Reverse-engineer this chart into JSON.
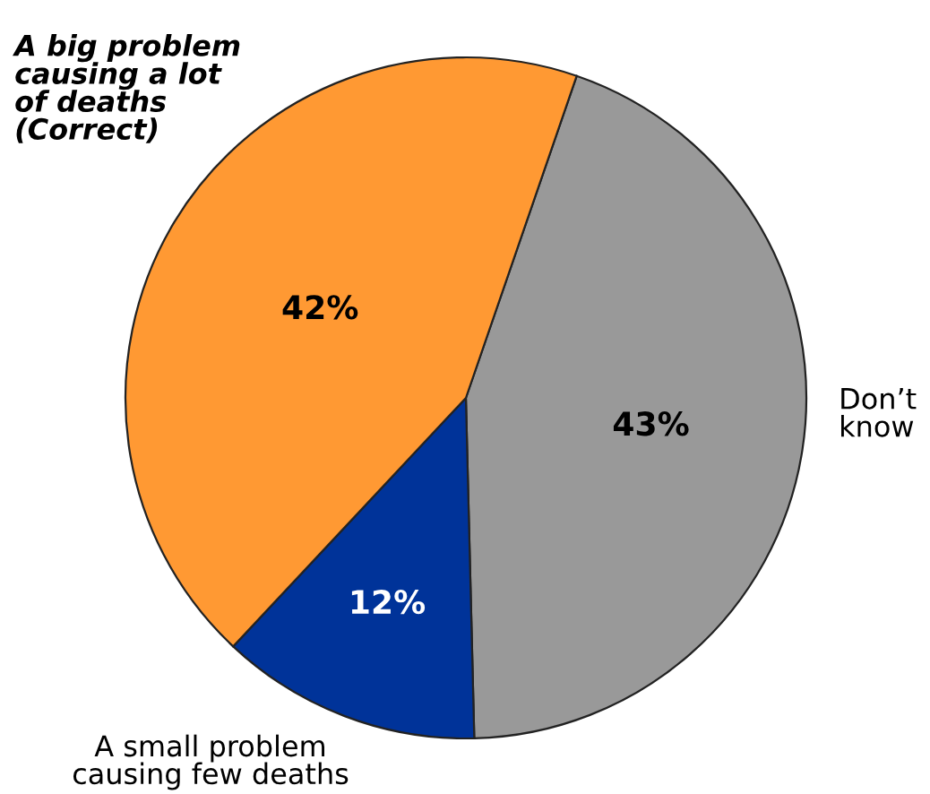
{
  "chart_data": {
    "type": "pie",
    "categories": [
      "Don’t\nknow",
      "A small problem\ncausing few deaths",
      "A big problem\ncausing a lot\nof deaths\n(Correct)"
    ],
    "values": [
      43,
      12,
      42
    ],
    "colors": [
      "#999999",
      "#003399",
      "#ff9933"
    ],
    "value_labels": [
      "43%",
      "12%",
      "42%"
    ]
  }
}
